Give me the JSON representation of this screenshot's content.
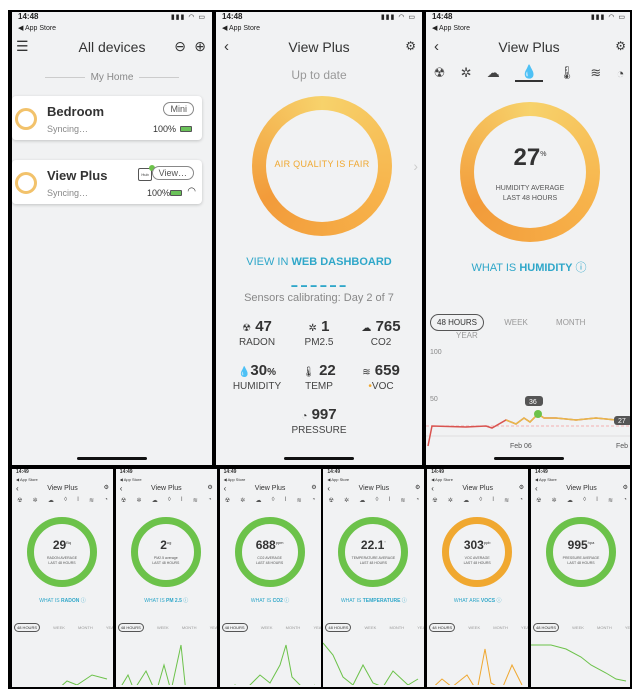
{
  "screen1": {
    "time": "14:48",
    "back_app": "◀ App Store",
    "title": "All devices",
    "section": "My Home",
    "devices": [
      {
        "name": "Bedroom",
        "badge": "Mini",
        "status": "Syncing…",
        "battery": "100%"
      },
      {
        "name": "View Plus",
        "badge": "View…",
        "hub": "Hub",
        "status": "Syncing…",
        "battery": "100%"
      }
    ]
  },
  "screen2": {
    "time": "14:48",
    "back_app": "◀ App Store",
    "title": "View Plus",
    "status": "Up to date",
    "gauge_text": "AIR QUALITY IS FAIR",
    "link_prefix": "VIEW IN ",
    "link_bold": "WEB DASHBOARD",
    "calibrating": "Sensors calibrating: Day 2 of 7",
    "sensors": [
      {
        "value": "47",
        "unit": "",
        "label": "RADON",
        "icon": "radiation-icon"
      },
      {
        "value": "1",
        "unit": "",
        "label": "PM2.5",
        "icon": "particle-icon"
      },
      {
        "value": "765",
        "unit": "",
        "label": "CO2",
        "icon": "cloud-icon"
      },
      {
        "value": "30",
        "unit": "%",
        "label": "HUMIDITY",
        "icon": "droplet-icon"
      },
      {
        "value": "22",
        "unit": "",
        "label": "TEMP",
        "icon": "thermometer-icon"
      },
      {
        "value": "659",
        "unit": "",
        "label": "VOC",
        "icon": "wind-icon"
      },
      {
        "value": "997",
        "unit": "",
        "label": "PRESSURE",
        "icon": "gauge-icon"
      }
    ]
  },
  "screen3": {
    "time": "14:48",
    "back_app": "◀ App Store",
    "title": "View Plus",
    "value": "27",
    "unit": "%",
    "caption1": "HUMIDITY AVERAGE",
    "caption2": "LAST 48 HOURS",
    "what_is_prefix": "WHAT IS ",
    "what_is_bold": "HUMIDITY",
    "ranges": [
      "48 HOURS",
      "WEEK",
      "MONTH",
      "YEAR"
    ],
    "y_ticks": [
      "100",
      "50"
    ],
    "x_label": "Feb 06",
    "x_label2": "Feb",
    "marker": "36",
    "end_value": "27"
  },
  "mini_screens": [
    {
      "time": "14:49",
      "title": "View Plus",
      "value": "29",
      "unit": "Bq",
      "cap1": "RADON AVERAGE",
      "cap2": "LAST 48 HOURS",
      "what": "WHAT IS ",
      "bold": "RADON",
      "color": "#6cc24a"
    },
    {
      "time": "14:49",
      "title": "View Plus",
      "value": "2",
      "unit": "ug",
      "cap1": "PM2.5 average",
      "cap2": "LAST 48 HOURS",
      "what": "WHAT IS ",
      "bold": "PM 2.5",
      "color": "#6cc24a"
    },
    {
      "time": "14:49",
      "title": "View Plus",
      "value": "688",
      "unit": "ppm",
      "cap1": "CO2 AVERAGE",
      "cap2": "LAST 48 HOURS",
      "what": "WHAT IS ",
      "bold": "CO2",
      "color": "#6cc24a"
    },
    {
      "time": "14:49",
      "title": "View Plus",
      "value": "22.1",
      "unit": "°",
      "cap1": "TEMPERATURE AVERAGE",
      "cap2": "LAST 48 HOURS",
      "what": "WHAT IS ",
      "bold": "TEMPERATURE",
      "color": "#6cc24a"
    },
    {
      "time": "14:49",
      "title": "View Plus",
      "value": "303",
      "unit": "ppb",
      "cap1": "VOC AVERAGE",
      "cap2": "LAST 48 HOURS",
      "what": "WHAT ARE ",
      "bold": "VOCS",
      "color": "#f0a830"
    },
    {
      "time": "14:49",
      "title": "View Plus",
      "value": "995",
      "unit": "hpa",
      "cap1": "PRESSURE AVERAGE",
      "cap2": "LAST 48 HOURS",
      "what": "",
      "bold": "",
      "color": "#6cc24a"
    }
  ],
  "mini_ranges": [
    "48 HOURS",
    "WEEK",
    "MONTH",
    "YEAR"
  ],
  "mini_app": "App Store",
  "colors": {
    "green": "#6cc24a",
    "orange": "#f0a830",
    "teal": "#2fa7c9",
    "red": "#d9534f"
  }
}
